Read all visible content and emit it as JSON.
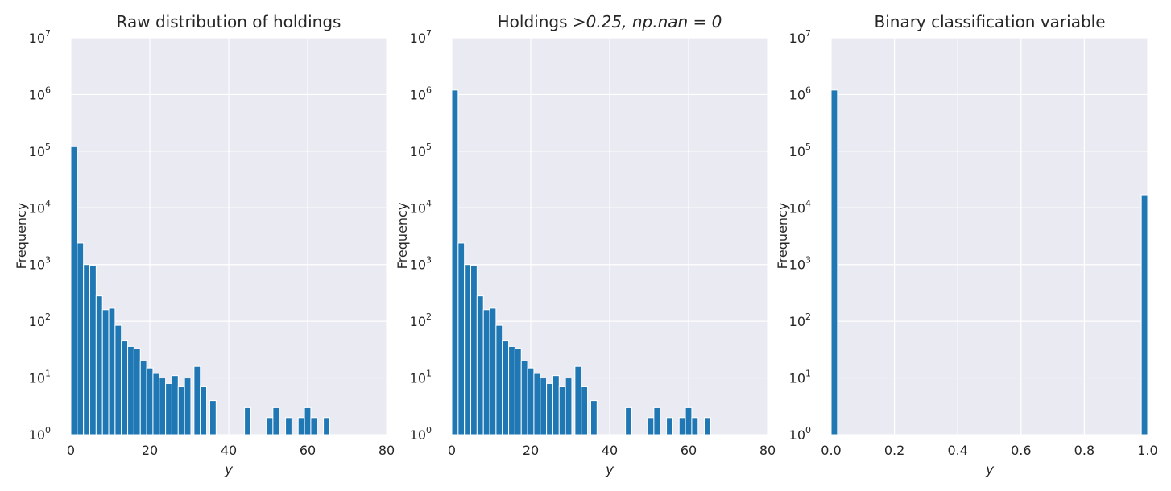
{
  "chart_data": [
    {
      "type": "bar",
      "title": "Raw distribution of holdings",
      "xlabel": "y",
      "ylabel": "Frequency",
      "xlim": [
        0,
        80
      ],
      "ylim": [
        1,
        10000000
      ],
      "yscale": "log",
      "grid": true,
      "xticks": [
        "0",
        "20",
        "40",
        "60",
        "80"
      ],
      "ytick_exponents": [
        "0",
        "1",
        "2",
        "3",
        "4",
        "5",
        "6",
        "7"
      ],
      "ytick_base": "10",
      "bin_width": 1.6,
      "x": [
        0.0,
        1.6,
        3.2,
        4.8,
        6.4,
        8.0,
        9.6,
        11.2,
        12.8,
        14.4,
        16.0,
        17.6,
        19.2,
        20.8,
        22.4,
        24.0,
        25.6,
        27.2,
        28.8,
        31.2,
        32.8,
        35.2,
        44.0,
        49.6,
        51.2,
        54.4,
        57.6,
        59.2,
        60.8,
        64.0
      ],
      "values": [
        120000,
        2400,
        1000,
        950,
        280,
        160,
        170,
        85,
        45,
        36,
        33,
        20,
        15,
        12,
        10,
        8,
        11,
        7,
        10,
        16,
        7,
        4,
        3,
        2,
        3,
        2,
        2,
        3,
        2,
        2
      ]
    },
    {
      "type": "bar",
      "title_prefix": "Holdings ",
      "title_math": ">0.25, np.nan = 0",
      "xlabel": "y",
      "ylabel": "Frequency",
      "xlim": [
        0,
        80
      ],
      "ylim": [
        1,
        10000000
      ],
      "yscale": "log",
      "grid": true,
      "xticks": [
        "0",
        "20",
        "40",
        "60",
        "80"
      ],
      "ytick_exponents": [
        "0",
        "1",
        "2",
        "3",
        "4",
        "5",
        "6",
        "7"
      ],
      "ytick_base": "10",
      "bin_width": 1.6,
      "x": [
        0.0,
        1.6,
        3.2,
        4.8,
        6.4,
        8.0,
        9.6,
        11.2,
        12.8,
        14.4,
        16.0,
        17.6,
        19.2,
        20.8,
        22.4,
        24.0,
        25.6,
        27.2,
        28.8,
        31.2,
        32.8,
        35.2,
        44.0,
        49.6,
        51.2,
        54.4,
        57.6,
        59.2,
        60.8,
        64.0
      ],
      "values": [
        1200000,
        2400,
        1000,
        950,
        280,
        160,
        170,
        85,
        45,
        36,
        33,
        20,
        15,
        12,
        10,
        8,
        11,
        7,
        10,
        16,
        7,
        4,
        3,
        2,
        3,
        2,
        2,
        3,
        2,
        2
      ]
    },
    {
      "type": "bar",
      "title": "Binary classification variable",
      "xlabel": "y",
      "ylabel": "Frequency",
      "xlim": [
        0,
        1
      ],
      "ylim": [
        1,
        10000000
      ],
      "yscale": "log",
      "grid": true,
      "xticks": [
        "0.0",
        "0.2",
        "0.4",
        "0.6",
        "0.8",
        "1.0"
      ],
      "ytick_exponents": [
        "0",
        "1",
        "2",
        "3",
        "4",
        "5",
        "6",
        "7"
      ],
      "ytick_base": "10",
      "bin_width": 0.02,
      "x": [
        0.0,
        0.98
      ],
      "values": [
        1200000,
        17000
      ]
    }
  ],
  "colors": {
    "bar": "#1f77b4",
    "plot_bg": "#eaeaf2",
    "grid": "#ffffff",
    "text": "#262626"
  }
}
